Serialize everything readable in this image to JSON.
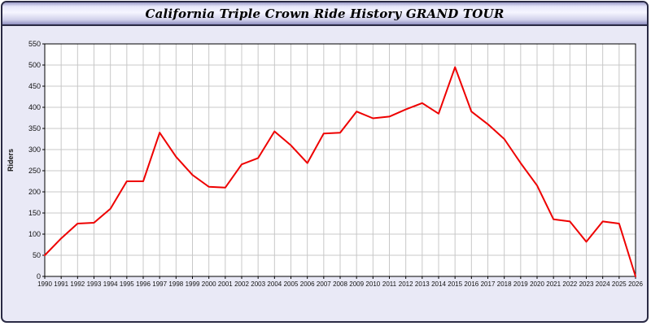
{
  "window": {
    "title": "California Triple Crown Ride History GRAND TOUR"
  },
  "chart_data": {
    "type": "line",
    "title": "California Triple Crown Ride History GRAND TOUR",
    "xlabel": "",
    "ylabel": "Riders",
    "ylim": [
      0,
      550
    ],
    "ytick_step": 50,
    "grid": true,
    "legend_position": "none",
    "x": [
      1990,
      1991,
      1992,
      1993,
      1994,
      1995,
      1996,
      1997,
      1998,
      1999,
      2000,
      2001,
      2002,
      2003,
      2004,
      2005,
      2006,
      2007,
      2008,
      2009,
      2010,
      2011,
      2012,
      2013,
      2014,
      2015,
      2016,
      2017,
      2018,
      2019,
      2020,
      2021,
      2022,
      2023,
      2024,
      2025,
      2026
    ],
    "series": [
      {
        "name": "Riders",
        "color": "#ee0000",
        "values": [
          50,
          90,
          125,
          127,
          160,
          225,
          225,
          340,
          283,
          240,
          212,
          210,
          265,
          280,
          343,
          310,
          268,
          338,
          340,
          390,
          374,
          378,
          395,
          410,
          385,
          495,
          390,
          360,
          325,
          268,
          215,
          135,
          130,
          82,
          130,
          125,
          0
        ]
      }
    ],
    "colors": {
      "background": "#e9e9f6",
      "plot_background": "#ffffff",
      "grid": "#c8c8c8",
      "line": "#ee0000"
    }
  }
}
